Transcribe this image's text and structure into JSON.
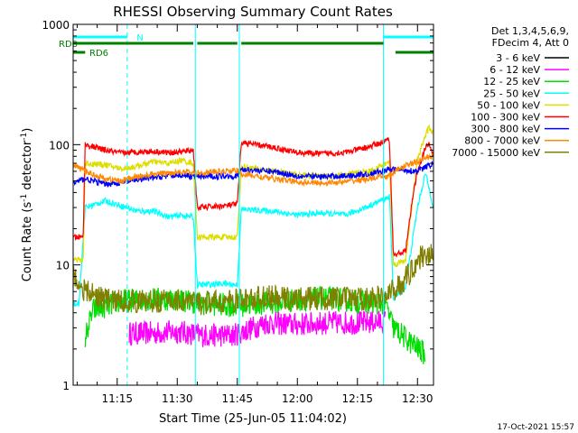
{
  "chart_data": {
    "type": "line",
    "title": "RHESSI Observing Summary Count Rates",
    "xlabel": "Start Time (25-Jun-05 11:04:02)",
    "ylabel_main": "Count Rate (s",
    "ylabel_sup1": "-1",
    "ylabel_mid": " detector",
    "ylabel_sup2": "-1",
    "ylabel_end": ")",
    "y_scale": "log",
    "ylim": [
      1,
      1000
    ],
    "xlim_minutes": [
      0,
      90
    ],
    "y_ticks": [
      {
        "value": 1,
        "label": "1"
      },
      {
        "value": 10,
        "label": "10"
      },
      {
        "value": 100,
        "label": "100"
      },
      {
        "value": 1000,
        "label": "1000"
      }
    ],
    "x_ticks": [
      {
        "minute": 11,
        "label": "11:15"
      },
      {
        "minute": 26,
        "label": "11:30"
      },
      {
        "minute": 41,
        "label": "11:45"
      },
      {
        "minute": 56,
        "label": "12:00"
      },
      {
        "minute": 71,
        "label": "12:15"
      },
      {
        "minute": 86,
        "label": "12:30"
      }
    ],
    "legend_header": [
      "Det 1,3,4,5,6,9,",
      "FDecim 4, Att 0"
    ],
    "legend_placement": "top-right, outside plot",
    "series": [
      {
        "name": "3 - 6 keV",
        "color": "#000000",
        "points": []
      },
      {
        "name": "6 - 12 keV",
        "color": "#ff00ff",
        "points": [
          [
            14,
            2.7
          ],
          [
            20,
            2.7
          ],
          [
            26,
            2.8
          ],
          [
            32,
            2.6
          ],
          [
            40,
            2.6
          ],
          [
            48,
            3.3
          ],
          [
            56,
            3.2
          ],
          [
            64,
            3.3
          ],
          [
            72,
            3.3
          ],
          [
            78,
            3.4
          ]
        ]
      },
      {
        "name": "12 - 25 keV",
        "color": "#00dd00",
        "points": [
          [
            3,
            2.5
          ],
          [
            5,
            4.2
          ],
          [
            12,
            5.0
          ],
          [
            20,
            5.2
          ],
          [
            26,
            5.2
          ],
          [
            32,
            4.8
          ],
          [
            40,
            4.6
          ],
          [
            48,
            4.8
          ],
          [
            56,
            5.1
          ],
          [
            64,
            5.3
          ],
          [
            72,
            4.9
          ],
          [
            78,
            4.8
          ],
          [
            80,
            3.0
          ],
          [
            84,
            2.3
          ],
          [
            88,
            1.8
          ]
        ]
      },
      {
        "name": "25 - 50 keV",
        "color": "#00ffff",
        "points": [
          [
            0,
            4.8
          ],
          [
            1.5,
            4.8
          ],
          [
            3,
            30
          ],
          [
            8,
            34
          ],
          [
            12,
            31
          ],
          [
            16,
            28
          ],
          [
            20,
            28
          ],
          [
            24,
            25
          ],
          [
            27,
            26
          ],
          [
            30,
            25
          ],
          [
            31,
            6.8
          ],
          [
            38,
            7.0
          ],
          [
            41,
            6.8
          ],
          [
            42,
            29
          ],
          [
            50,
            28
          ],
          [
            56,
            26
          ],
          [
            62,
            27
          ],
          [
            68,
            26
          ],
          [
            74,
            31
          ],
          [
            79,
            37
          ],
          [
            80,
            5.2
          ],
          [
            83,
            6.5
          ],
          [
            86,
            30
          ],
          [
            88,
            58
          ],
          [
            90,
            30
          ],
          [
            92,
            16
          ]
        ]
      },
      {
        "name": "50 - 100 keV",
        "color": "#dddd00",
        "points": [
          [
            0,
            11
          ],
          [
            2.5,
            11
          ],
          [
            3,
            70
          ],
          [
            8,
            68
          ],
          [
            12,
            63
          ],
          [
            16,
            66
          ],
          [
            20,
            72
          ],
          [
            24,
            70
          ],
          [
            27,
            74
          ],
          [
            30,
            70
          ],
          [
            31,
            17
          ],
          [
            38,
            17
          ],
          [
            41,
            17
          ],
          [
            42,
            66
          ],
          [
            50,
            60
          ],
          [
            56,
            56
          ],
          [
            62,
            55
          ],
          [
            68,
            56
          ],
          [
            74,
            60
          ],
          [
            79,
            72
          ],
          [
            80,
            10
          ],
          [
            83,
            11
          ],
          [
            86,
            75
          ],
          [
            88,
            120
          ],
          [
            89,
            140
          ],
          [
            90,
            120
          ],
          [
            92,
            80
          ]
        ]
      },
      {
        "name": "100 - 300 keV",
        "color": "#ff0000",
        "points": [
          [
            0,
            17
          ],
          [
            2.5,
            17
          ],
          [
            3,
            100
          ],
          [
            8,
            90
          ],
          [
            12,
            85
          ],
          [
            16,
            87
          ],
          [
            20,
            88
          ],
          [
            24,
            86
          ],
          [
            27,
            87
          ],
          [
            30,
            90
          ],
          [
            31,
            30
          ],
          [
            38,
            31
          ],
          [
            41,
            32
          ],
          [
            42,
            104
          ],
          [
            50,
            95
          ],
          [
            56,
            86
          ],
          [
            62,
            84
          ],
          [
            68,
            86
          ],
          [
            74,
            96
          ],
          [
            79,
            110
          ],
          [
            80,
            12
          ],
          [
            83,
            13
          ],
          [
            85,
            40
          ],
          [
            86,
            60
          ],
          [
            88,
            95
          ],
          [
            89,
            100
          ],
          [
            90,
            80
          ],
          [
            92,
            40
          ]
        ]
      },
      {
        "name": "300 - 800 keV",
        "color": "#0000ff",
        "points": [
          [
            0,
            48
          ],
          [
            3,
            52
          ],
          [
            8,
            47
          ],
          [
            12,
            48
          ],
          [
            16,
            51
          ],
          [
            20,
            53
          ],
          [
            24,
            55
          ],
          [
            27,
            56
          ],
          [
            30,
            54
          ],
          [
            38,
            55
          ],
          [
            41,
            55
          ],
          [
            42,
            62
          ],
          [
            50,
            60
          ],
          [
            56,
            55
          ],
          [
            62,
            54
          ],
          [
            68,
            55
          ],
          [
            74,
            57
          ],
          [
            79,
            62
          ],
          [
            82,
            62
          ],
          [
            86,
            60
          ],
          [
            88,
            65
          ],
          [
            90,
            70
          ],
          [
            92,
            65
          ]
        ]
      },
      {
        "name": "800 - 7000 keV",
        "color": "#ff8800",
        "points": [
          [
            0,
            68
          ],
          [
            3,
            60
          ],
          [
            8,
            52
          ],
          [
            12,
            50
          ],
          [
            16,
            54
          ],
          [
            20,
            57
          ],
          [
            24,
            58
          ],
          [
            27,
            60
          ],
          [
            30,
            58
          ],
          [
            38,
            60
          ],
          [
            41,
            61
          ],
          [
            42,
            57
          ],
          [
            50,
            52
          ],
          [
            56,
            49
          ],
          [
            62,
            48
          ],
          [
            68,
            49
          ],
          [
            74,
            52
          ],
          [
            79,
            55
          ],
          [
            82,
            65
          ],
          [
            86,
            72
          ],
          [
            88,
            78
          ],
          [
            90,
            80
          ],
          [
            92,
            78
          ]
        ]
      },
      {
        "name": "7000 - 15000 keV",
        "color": "#808000",
        "points": [
          [
            0,
            8.2
          ],
          [
            3,
            6.0
          ],
          [
            8,
            5.2
          ],
          [
            12,
            5.0
          ],
          [
            20,
            5.0
          ],
          [
            26,
            5.1
          ],
          [
            32,
            4.8
          ],
          [
            40,
            5.0
          ],
          [
            48,
            5.4
          ],
          [
            56,
            5.2
          ],
          [
            64,
            5.3
          ],
          [
            72,
            5.2
          ],
          [
            78,
            5.4
          ],
          [
            82,
            7.0
          ],
          [
            84,
            8.5
          ],
          [
            86,
            11
          ],
          [
            88,
            12.5
          ],
          [
            90,
            12
          ],
          [
            92,
            11
          ]
        ]
      }
    ],
    "annotations": {
      "top_bars": [
        {
          "label": "N",
          "color": "#00ffff",
          "segments": [
            [
              0,
              13.5
            ],
            [
              77.5,
              92
            ]
          ],
          "label_at": 14.5
        },
        {
          "label": "RD0",
          "color": "#008000",
          "segments": [
            [
              0,
              30
            ],
            [
              31,
              41
            ],
            [
              42,
              77.5
            ]
          ]
        },
        {
          "label": "RD6",
          "color": "#008000",
          "segments": [
            [
              0,
              3
            ],
            [
              80.5,
              92
            ]
          ]
        }
      ],
      "saa_vertical_lines": [
        {
          "minute": 13.5,
          "style": "dashed"
        },
        {
          "minute": 30.5,
          "style": "solid"
        },
        {
          "minute": 41.5,
          "style": "solid"
        },
        {
          "minute": 77.5,
          "style": "solid"
        },
        {
          "minute": 92,
          "style": "dashed"
        }
      ]
    }
  },
  "footer": {
    "timestamp": "17-Oct-2021 15:57"
  }
}
